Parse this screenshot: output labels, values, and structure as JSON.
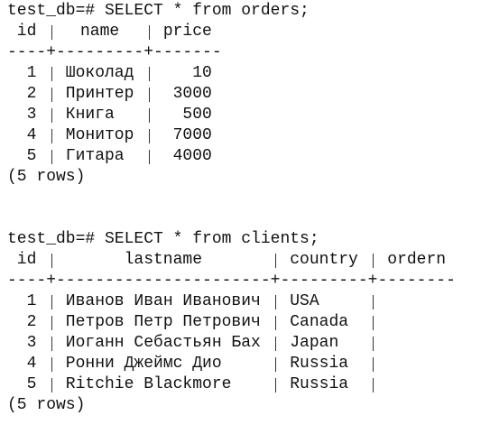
{
  "queries": [
    {
      "command": "test_db=# SELECT * from orders;",
      "columns": [
        "id",
        "name",
        "price"
      ],
      "separator": "----+---------+-------",
      "rows": [
        [
          1,
          "Шоколад",
          10
        ],
        [
          2,
          "Принтер",
          3000
        ],
        [
          3,
          "Книга",
          500
        ],
        [
          4,
          "Монитор",
          7000
        ],
        [
          5,
          "Гитара",
          4000
        ]
      ],
      "footer": "(5 rows)"
    },
    {
      "command": "test_db=# SELECT * from clients;",
      "columns": [
        "id",
        "lastname",
        "country",
        "ordern"
      ],
      "separator": "----+----------------------+---------+--------",
      "rows": [
        [
          1,
          "Иванов Иван Иванович",
          "USA"
        ],
        [
          2,
          "Петров Петр Петрович",
          "Canada"
        ],
        [
          3,
          "Иоганн Себастьян Бах",
          "Japan"
        ],
        [
          4,
          "Ронни Джеймс Дио",
          "Russia"
        ],
        [
          5,
          "Ritchie Blackmore",
          "Russia"
        ]
      ],
      "footer": "(5 rows)"
    }
  ]
}
